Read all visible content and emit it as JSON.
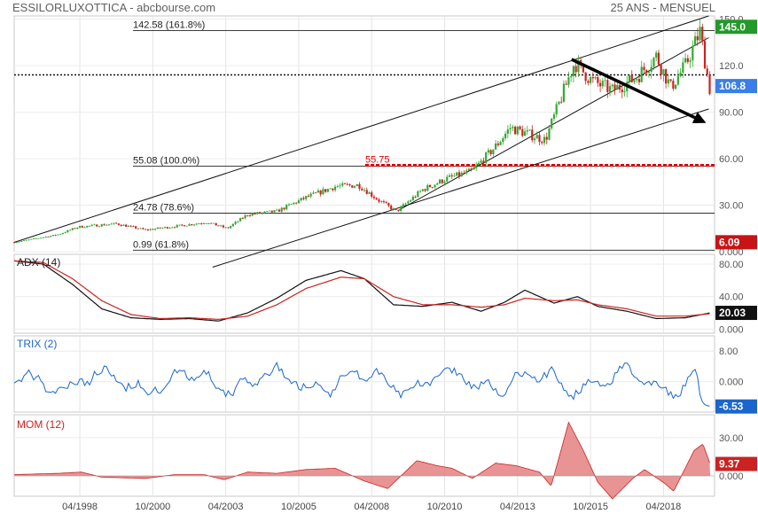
{
  "header": {
    "title": "ESSILORLUXOTTICA - abcbourse.com",
    "period": "25 ANS - MENSUEL"
  },
  "colors": {
    "up": "#33aa33",
    "down": "#cc2222",
    "adx": "#111111",
    "adx_signal": "#cc2222",
    "trix": "#1a66cc",
    "mom_fill": "#e07070",
    "mom_line": "#cc2222",
    "badge_green": "#22992a",
    "badge_blue": "#3a7ee8",
    "badge_red": "#c81414",
    "support_line": "#dd0000"
  },
  "chart_data": [
    {
      "type": "candlestick",
      "name": "price",
      "x_range": [
        1996.0,
        2020.0
      ],
      "ylim": [
        0,
        152
      ],
      "y_ticks": [
        {
          "value": 150,
          "label": "150.0"
        },
        {
          "value": 120,
          "label": "120.0"
        },
        {
          "value": 90,
          "label": "90.00"
        },
        {
          "value": 60,
          "label": "60.00"
        },
        {
          "value": 30,
          "label": "30.00"
        },
        {
          "value": 0,
          "label": "0.000"
        }
      ],
      "badges": [
        {
          "value": 145.0,
          "label": "145.0",
          "color": "green"
        },
        {
          "value": 106.8,
          "label": "106.8",
          "color": "blue"
        },
        {
          "value": 6.09,
          "label": "6.09",
          "color": "red"
        }
      ],
      "fib_levels": [
        {
          "value": 142.58,
          "label": "142.58  (161.8%)"
        },
        {
          "value": 55.08,
          "label": "55.08  (100.0%)"
        },
        {
          "value": 24.78,
          "label": "24.78  (78.6%)"
        },
        {
          "value": 0.99,
          "label": "0.99  (61.8%)"
        }
      ],
      "support_line": {
        "value": 55.75,
        "label": "55.75"
      },
      "dotted_line": {
        "value": 114
      },
      "anchors": [
        {
          "t": 1996.0,
          "v": 6
        },
        {
          "t": 1997.5,
          "v": 11
        },
        {
          "t": 1998.2,
          "v": 16
        },
        {
          "t": 1999.5,
          "v": 18
        },
        {
          "t": 2000.5,
          "v": 14
        },
        {
          "t": 2001.8,
          "v": 17
        },
        {
          "t": 2002.6,
          "v": 19
        },
        {
          "t": 2003.3,
          "v": 15
        },
        {
          "t": 2004.0,
          "v": 24
        },
        {
          "t": 2005.0,
          "v": 26
        },
        {
          "t": 2006.0,
          "v": 35
        },
        {
          "t": 2007.0,
          "v": 42
        },
        {
          "t": 2007.8,
          "v": 43
        },
        {
          "t": 2008.5,
          "v": 33
        },
        {
          "t": 2009.1,
          "v": 26
        },
        {
          "t": 2010.0,
          "v": 40
        },
        {
          "t": 2010.8,
          "v": 47
        },
        {
          "t": 2011.7,
          "v": 52
        },
        {
          "t": 2012.5,
          "v": 68
        },
        {
          "t": 2013.0,
          "v": 80
        },
        {
          "t": 2013.6,
          "v": 76
        },
        {
          "t": 2014.2,
          "v": 72
        },
        {
          "t": 2015.2,
          "v": 122
        },
        {
          "t": 2015.8,
          "v": 110
        },
        {
          "t": 2016.5,
          "v": 104
        },
        {
          "t": 2017.3,
          "v": 112
        },
        {
          "t": 2018.0,
          "v": 126
        },
        {
          "t": 2018.5,
          "v": 106
        },
        {
          "t": 2019.0,
          "v": 120
        },
        {
          "t": 2019.5,
          "v": 142
        },
        {
          "t": 2019.85,
          "v": 103
        }
      ],
      "channel_lines": [
        {
          "from": {
            "t": 1996.0,
            "v": 6
          },
          "to": {
            "t": 2019.8,
            "v": 152
          }
        },
        {
          "from": {
            "t": 2002.8,
            "v": -10
          },
          "to": {
            "t": 2019.8,
            "v": 92
          }
        },
        {
          "from": {
            "t": 2009.2,
            "v": 27
          },
          "to": {
            "t": 2019.8,
            "v": 138
          }
        }
      ],
      "arrow": {
        "from": {
          "t": 2015.1,
          "v": 124
        },
        "to": {
          "t": 2019.6,
          "v": 84
        }
      }
    },
    {
      "type": "line",
      "name": "ADX (14)",
      "title": "ADX (14)",
      "ylim": [
        -5,
        92
      ],
      "y_ticks": [
        {
          "value": 80,
          "label": "80.00"
        },
        {
          "value": 40,
          "label": "40.00"
        },
        {
          "value": 0,
          "label": "0.000"
        }
      ],
      "badge": {
        "value": 20.03,
        "label": "20.03"
      },
      "series": [
        {
          "role": "adx",
          "points": [
            {
              "t": 1996.0,
              "v": 84
            },
            {
              "t": 1997.0,
              "v": 80
            },
            {
              "t": 1998.0,
              "v": 55
            },
            {
              "t": 1999.0,
              "v": 25
            },
            {
              "t": 2000.0,
              "v": 14
            },
            {
              "t": 2001.0,
              "v": 12
            },
            {
              "t": 2002.0,
              "v": 13
            },
            {
              "t": 2003.0,
              "v": 10
            },
            {
              "t": 2004.0,
              "v": 20
            },
            {
              "t": 2005.0,
              "v": 38
            },
            {
              "t": 2006.0,
              "v": 60
            },
            {
              "t": 2007.2,
              "v": 72
            },
            {
              "t": 2008.0,
              "v": 62
            },
            {
              "t": 2009.0,
              "v": 30
            },
            {
              "t": 2010.0,
              "v": 28
            },
            {
              "t": 2011.0,
              "v": 33
            },
            {
              "t": 2012.0,
              "v": 22
            },
            {
              "t": 2012.8,
              "v": 33
            },
            {
              "t": 2013.5,
              "v": 48
            },
            {
              "t": 2014.5,
              "v": 32
            },
            {
              "t": 2015.3,
              "v": 40
            },
            {
              "t": 2016.0,
              "v": 28
            },
            {
              "t": 2017.0,
              "v": 22
            },
            {
              "t": 2018.0,
              "v": 13
            },
            {
              "t": 2019.0,
              "v": 14
            },
            {
              "t": 2019.85,
              "v": 20
            }
          ]
        },
        {
          "role": "signal",
          "points": [
            {
              "t": 1996.0,
              "v": 84
            },
            {
              "t": 1997.0,
              "v": 82
            },
            {
              "t": 1998.0,
              "v": 62
            },
            {
              "t": 1999.0,
              "v": 35
            },
            {
              "t": 2000.0,
              "v": 18
            },
            {
              "t": 2001.0,
              "v": 13
            },
            {
              "t": 2002.0,
              "v": 14
            },
            {
              "t": 2003.0,
              "v": 12
            },
            {
              "t": 2004.0,
              "v": 16
            },
            {
              "t": 2005.0,
              "v": 30
            },
            {
              "t": 2006.0,
              "v": 50
            },
            {
              "t": 2007.2,
              "v": 64
            },
            {
              "t": 2008.0,
              "v": 62
            },
            {
              "t": 2009.0,
              "v": 40
            },
            {
              "t": 2010.0,
              "v": 30
            },
            {
              "t": 2011.0,
              "v": 30
            },
            {
              "t": 2012.0,
              "v": 27
            },
            {
              "t": 2012.8,
              "v": 30
            },
            {
              "t": 2013.5,
              "v": 38
            },
            {
              "t": 2014.5,
              "v": 35
            },
            {
              "t": 2015.3,
              "v": 36
            },
            {
              "t": 2016.0,
              "v": 30
            },
            {
              "t": 2017.0,
              "v": 25
            },
            {
              "t": 2018.0,
              "v": 16
            },
            {
              "t": 2019.0,
              "v": 16
            },
            {
              "t": 2019.85,
              "v": 19
            }
          ]
        }
      ]
    },
    {
      "type": "line",
      "name": "TRIX (2)",
      "title": "TRIX (2)",
      "ylim": [
        -8,
        12
      ],
      "y_ticks": [
        {
          "value": 8,
          "label": "8.00"
        },
        {
          "value": 0,
          "label": "0.000"
        }
      ],
      "badge": {
        "value": -6.53,
        "label": "-6.53"
      },
      "start_value": 1.0,
      "end_value": -6.53
    },
    {
      "type": "area",
      "name": "MOM (12)",
      "title": "MOM (12)",
      "ylim": [
        -16,
        48
      ],
      "y_ticks": [
        {
          "value": 30,
          "label": "30.00"
        },
        {
          "value": 0,
          "label": "0.000"
        }
      ],
      "badge": {
        "value": 9.37,
        "label": "9.37"
      },
      "points": [
        {
          "t": 1996.0,
          "v": 1
        },
        {
          "t": 1997.5,
          "v": 2
        },
        {
          "t": 1998.3,
          "v": 3
        },
        {
          "t": 1999.0,
          "v": -1
        },
        {
          "t": 2000.5,
          "v": -2
        },
        {
          "t": 2001.5,
          "v": 1
        },
        {
          "t": 2002.5,
          "v": 1
        },
        {
          "t": 2003.2,
          "v": -3
        },
        {
          "t": 2004.0,
          "v": 3
        },
        {
          "t": 2005.0,
          "v": 2
        },
        {
          "t": 2006.0,
          "v": 5
        },
        {
          "t": 2007.0,
          "v": 6
        },
        {
          "t": 2008.0,
          "v": -4
        },
        {
          "t": 2008.8,
          "v": -10
        },
        {
          "t": 2009.8,
          "v": 12
        },
        {
          "t": 2010.5,
          "v": 8
        },
        {
          "t": 2011.0,
          "v": 6
        },
        {
          "t": 2011.7,
          "v": -2
        },
        {
          "t": 2012.5,
          "v": 10
        },
        {
          "t": 2013.2,
          "v": 8
        },
        {
          "t": 2014.0,
          "v": 3
        },
        {
          "t": 2014.4,
          "v": -8
        },
        {
          "t": 2015.0,
          "v": 42
        },
        {
          "t": 2015.5,
          "v": 20
        },
        {
          "t": 2016.0,
          "v": -5
        },
        {
          "t": 2016.5,
          "v": -18
        },
        {
          "t": 2017.2,
          "v": -2
        },
        {
          "t": 2017.6,
          "v": 5
        },
        {
          "t": 2018.3,
          "v": -6
        },
        {
          "t": 2018.6,
          "v": -12
        },
        {
          "t": 2019.3,
          "v": 20
        },
        {
          "t": 2019.6,
          "v": 25
        },
        {
          "t": 2019.85,
          "v": 9.37
        }
      ]
    }
  ],
  "x_axis_labels": [
    {
      "t": 1998.25,
      "label": "04/1998"
    },
    {
      "t": 2000.75,
      "label": "10/2000"
    },
    {
      "t": 2003.25,
      "label": "04/2003"
    },
    {
      "t": 2005.75,
      "label": "10/2005"
    },
    {
      "t": 2008.25,
      "label": "04/2008"
    },
    {
      "t": 2010.75,
      "label": "10/2010"
    },
    {
      "t": 2013.25,
      "label": "04/2013"
    },
    {
      "t": 2015.75,
      "label": "10/2015"
    },
    {
      "t": 2018.25,
      "label": "04/2018"
    }
  ]
}
